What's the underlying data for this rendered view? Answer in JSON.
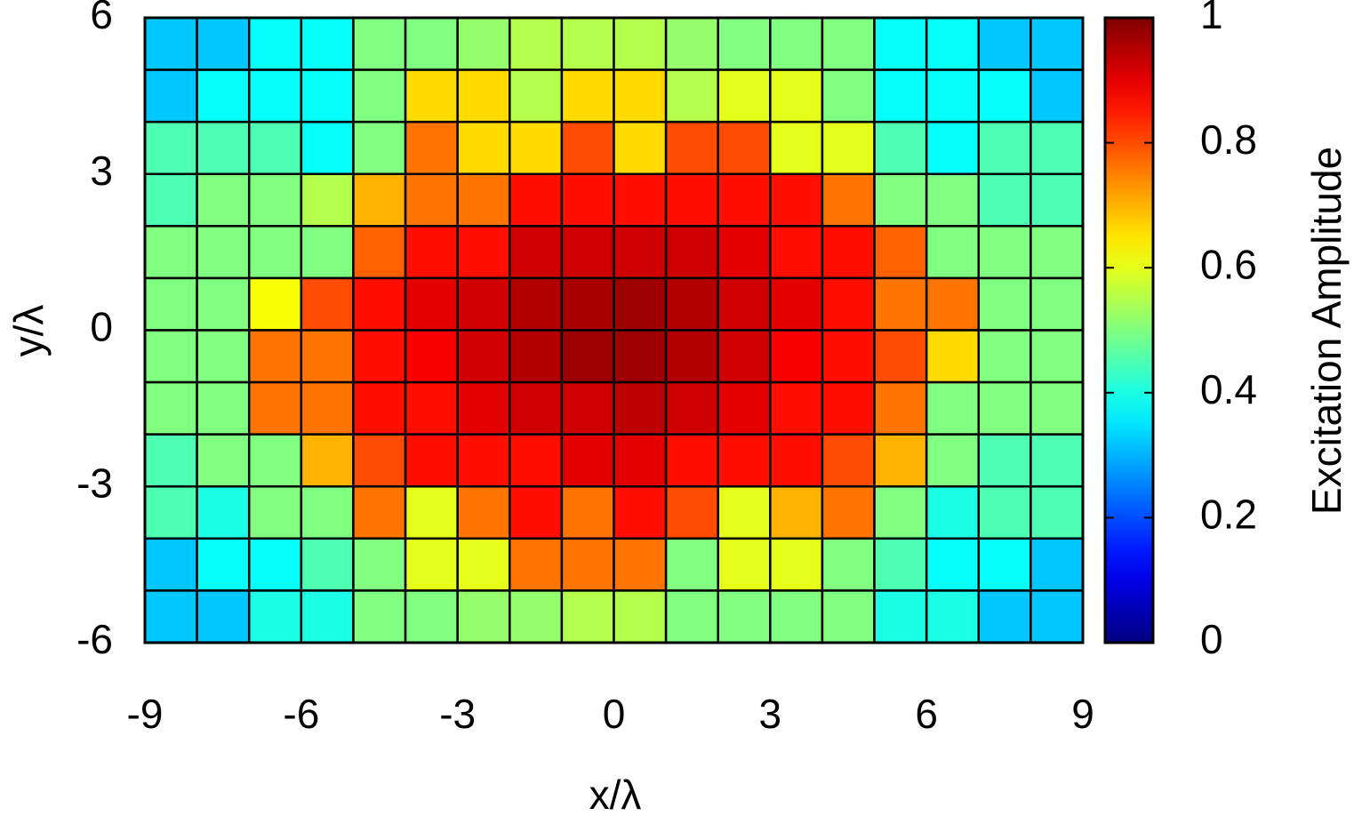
{
  "chart_data": {
    "type": "heatmap",
    "xlabel": "x/λ",
    "ylabel": "y/λ",
    "colorbar_label": "Excitation Amplitude",
    "colormap": "jet",
    "xlim": [
      -9,
      9
    ],
    "ylim": [
      -6,
      6
    ],
    "zlim": [
      0,
      1
    ],
    "xticks": [
      -9,
      -6,
      -3,
      0,
      3,
      6,
      9
    ],
    "yticks": [
      -6,
      -3,
      0,
      3,
      6
    ],
    "zticks": [
      0,
      0.2,
      0.4,
      0.6,
      0.8,
      1
    ],
    "z": [
      [
        0.32,
        0.32,
        0.38,
        0.38,
        0.5,
        0.5,
        0.52,
        0.55,
        0.55,
        0.55,
        0.52,
        0.5,
        0.5,
        0.5,
        0.38,
        0.38,
        0.32,
        0.32
      ],
      [
        0.32,
        0.38,
        0.38,
        0.38,
        0.5,
        0.66,
        0.66,
        0.55,
        0.66,
        0.66,
        0.55,
        0.6,
        0.6,
        0.5,
        0.38,
        0.38,
        0.38,
        0.32
      ],
      [
        0.45,
        0.45,
        0.45,
        0.38,
        0.5,
        0.76,
        0.66,
        0.66,
        0.8,
        0.66,
        0.8,
        0.8,
        0.6,
        0.6,
        0.45,
        0.38,
        0.45,
        0.45
      ],
      [
        0.45,
        0.5,
        0.5,
        0.55,
        0.7,
        0.76,
        0.76,
        0.86,
        0.86,
        0.86,
        0.86,
        0.86,
        0.86,
        0.76,
        0.5,
        0.5,
        0.45,
        0.45
      ],
      [
        0.5,
        0.5,
        0.5,
        0.5,
        0.78,
        0.86,
        0.86,
        0.92,
        0.92,
        0.92,
        0.92,
        0.9,
        0.86,
        0.86,
        0.78,
        0.5,
        0.5,
        0.5
      ],
      [
        0.5,
        0.5,
        0.62,
        0.8,
        0.86,
        0.9,
        0.92,
        0.95,
        0.96,
        0.97,
        0.95,
        0.92,
        0.9,
        0.86,
        0.76,
        0.76,
        0.5,
        0.5
      ],
      [
        0.5,
        0.5,
        0.76,
        0.76,
        0.86,
        0.88,
        0.92,
        0.95,
        0.97,
        0.97,
        0.95,
        0.92,
        0.88,
        0.86,
        0.8,
        0.66,
        0.5,
        0.5
      ],
      [
        0.5,
        0.5,
        0.76,
        0.76,
        0.86,
        0.86,
        0.9,
        0.92,
        0.92,
        0.94,
        0.92,
        0.9,
        0.86,
        0.86,
        0.76,
        0.5,
        0.5,
        0.5
      ],
      [
        0.45,
        0.5,
        0.5,
        0.7,
        0.8,
        0.86,
        0.86,
        0.86,
        0.9,
        0.9,
        0.86,
        0.86,
        0.86,
        0.8,
        0.7,
        0.5,
        0.45,
        0.45
      ],
      [
        0.45,
        0.4,
        0.5,
        0.5,
        0.76,
        0.6,
        0.76,
        0.86,
        0.76,
        0.86,
        0.8,
        0.6,
        0.7,
        0.76,
        0.5,
        0.4,
        0.45,
        0.45
      ],
      [
        0.32,
        0.38,
        0.38,
        0.45,
        0.5,
        0.6,
        0.6,
        0.76,
        0.76,
        0.76,
        0.5,
        0.6,
        0.6,
        0.5,
        0.45,
        0.38,
        0.38,
        0.32
      ],
      [
        0.32,
        0.32,
        0.4,
        0.4,
        0.5,
        0.5,
        0.52,
        0.52,
        0.55,
        0.55,
        0.5,
        0.5,
        0.5,
        0.5,
        0.4,
        0.4,
        0.32,
        0.32
      ]
    ]
  }
}
